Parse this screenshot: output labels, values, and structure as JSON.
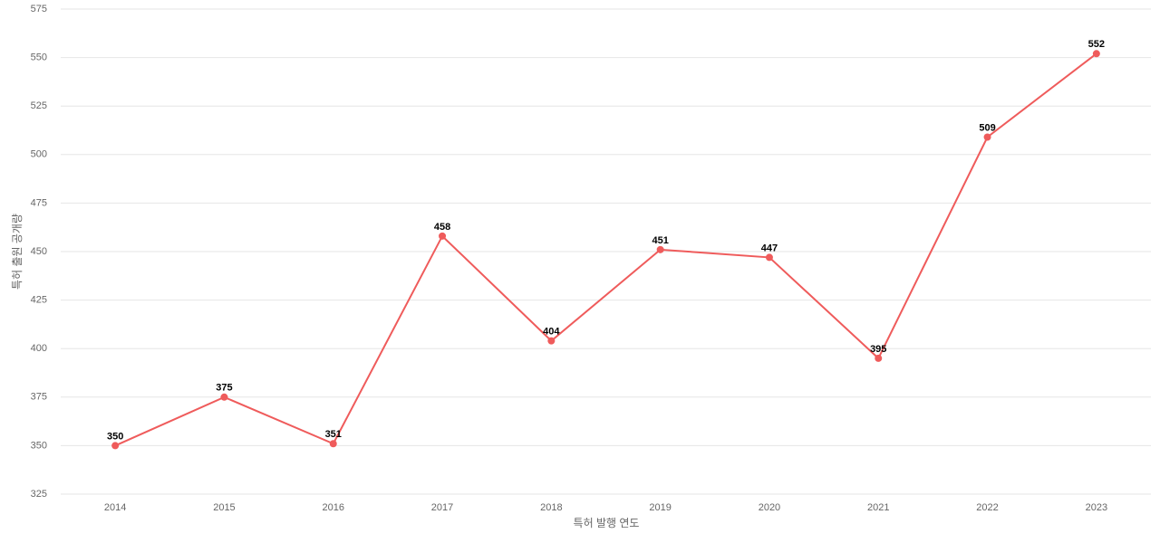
{
  "chart_data": {
    "type": "line",
    "x_label": "특허 발행 연도",
    "y_label": "특허 출원 공개량",
    "categories": [
      "2014",
      "2015",
      "2016",
      "2017",
      "2018",
      "2019",
      "2020",
      "2021",
      "2022",
      "2023"
    ],
    "series": [
      {
        "name": "특허 출원 공개량",
        "color": "#ef5b5b",
        "values": [
          350,
          375,
          351,
          458,
          404,
          451,
          447,
          395,
          509,
          552
        ]
      }
    ],
    "ylim": [
      325,
      575
    ],
    "yticks": [
      325,
      350,
      375,
      400,
      425,
      450,
      475,
      500,
      525,
      550,
      575
    ],
    "grid": true
  }
}
